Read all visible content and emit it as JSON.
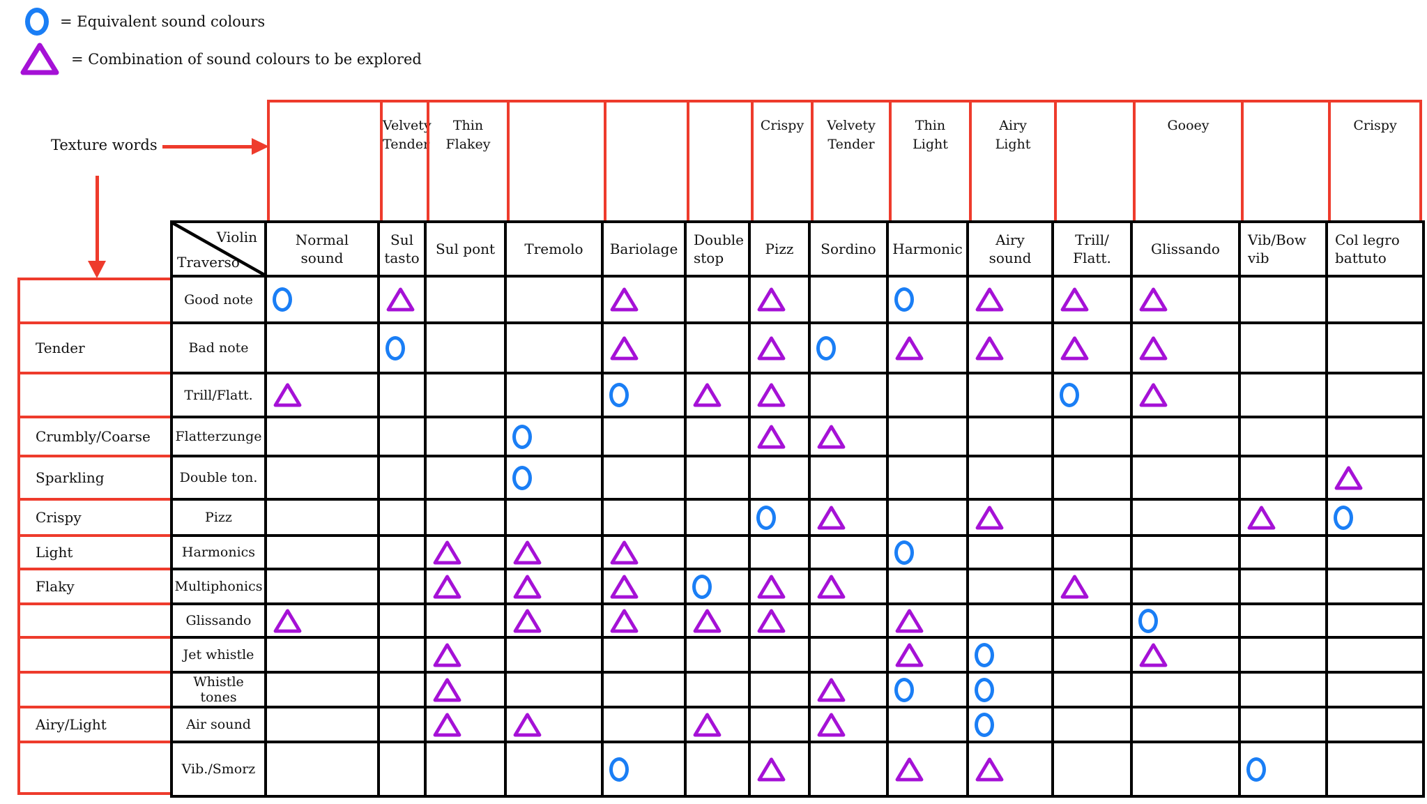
{
  "legend": {
    "equivalent": "= Equivalent sound colours",
    "combination": "= Combination of sound colours to be explored"
  },
  "annotations": {
    "texture_words_label": "Texture words"
  },
  "colors": {
    "red_lines": "#ee3b2c",
    "equivalent_circle": "#1a7ef5",
    "combination_triangle": "#a511d6",
    "table_lines": "#000000"
  },
  "table": {
    "corner": {
      "top_right": "Violin",
      "bottom_left": "Traverso"
    },
    "columns": [
      "Normal\nsound",
      "Sul\ntasto",
      "Sul pont",
      "Tremolo",
      "Bariolage",
      "Double\nstop",
      "Pizz",
      "Sordino",
      "Harmonic",
      "Airy\nsound",
      "Trill/\nFlatt.",
      "Glissando",
      "Vib/Bow\nvib",
      "Col legro\nbattuto"
    ],
    "top_texture_words": [
      "",
      "Velvety\nTender",
      "Thin\nFlakey",
      "",
      "",
      "",
      "Crispy",
      "Velvety\nTender",
      "Thin\nLight",
      "Airy\nLight",
      "",
      "Gooey",
      "",
      "Crispy"
    ],
    "rows": [
      {
        "texture": "",
        "label": "Good note",
        "cells": [
          "circle",
          "triangle",
          "",
          "",
          "triangle",
          "",
          "triangle",
          "",
          "circle",
          "triangle",
          "triangle",
          "triangle",
          "",
          ""
        ]
      },
      {
        "texture": "Tender",
        "label": "Bad note",
        "cells": [
          "",
          "circle",
          "",
          "",
          "triangle",
          "",
          "triangle",
          "circle",
          "triangle",
          "triangle",
          "triangle",
          "triangle",
          "",
          ""
        ]
      },
      {
        "texture": "",
        "label": "Trill/Flatt.",
        "cells": [
          "triangle",
          "",
          "",
          "",
          "circle",
          "triangle",
          "triangle",
          "",
          "",
          "",
          "circle",
          "triangle",
          "",
          ""
        ]
      },
      {
        "texture": "Crumbly/Coarse",
        "label": "Flatterzunge",
        "cells": [
          "",
          "",
          "",
          "circle",
          "",
          "",
          "triangle",
          "triangle",
          "",
          "",
          "",
          "",
          "",
          ""
        ]
      },
      {
        "texture": "Sparkling",
        "label": "Double ton.",
        "cells": [
          "",
          "",
          "",
          "circle",
          "",
          "",
          "",
          "",
          "",
          "",
          "",
          "",
          "",
          "triangle"
        ]
      },
      {
        "texture": "Crispy",
        "label": "Pizz",
        "cells": [
          "",
          "",
          "",
          "",
          "",
          "",
          "circle",
          "triangle",
          "",
          "triangle",
          "",
          "",
          "triangle",
          "circle"
        ]
      },
      {
        "texture": "Light",
        "label": "Harmonics",
        "cells": [
          "",
          "",
          "triangle",
          "triangle",
          "triangle",
          "",
          "",
          "",
          "circle",
          "",
          "",
          "",
          "",
          ""
        ]
      },
      {
        "texture": "Flaky",
        "label": "Multiphonics",
        "cells": [
          "",
          "",
          "triangle",
          "triangle",
          "triangle",
          "circle",
          "triangle",
          "triangle",
          "",
          "",
          "triangle",
          "",
          "",
          ""
        ]
      },
      {
        "texture": "",
        "label": "Glissando",
        "cells": [
          "triangle",
          "",
          "",
          "triangle",
          "triangle",
          "triangle",
          "triangle",
          "",
          "triangle",
          "",
          "",
          "circle",
          "",
          ""
        ]
      },
      {
        "texture": "",
        "label": "Jet whistle",
        "cells": [
          "",
          "",
          "triangle",
          "",
          "",
          "",
          "",
          "",
          "triangle",
          "circle",
          "",
          "triangle",
          "",
          ""
        ]
      },
      {
        "texture": "",
        "label": "Whistle tones",
        "cells": [
          "",
          "",
          "triangle",
          "",
          "",
          "",
          "",
          "triangle",
          "circle",
          "circle",
          "",
          "",
          "",
          ""
        ]
      },
      {
        "texture": "Airy/Light",
        "label": "Air sound",
        "cells": [
          "",
          "",
          "triangle",
          "triangle",
          "",
          "triangle",
          "",
          "triangle",
          "",
          "circle",
          "",
          "",
          "",
          ""
        ]
      },
      {
        "texture": "",
        "label": "Vib./Smorz",
        "cells": [
          "",
          "",
          "",
          "",
          "circle",
          "",
          "triangle",
          "",
          "triangle",
          "triangle",
          "",
          "",
          "circle",
          ""
        ]
      }
    ]
  }
}
